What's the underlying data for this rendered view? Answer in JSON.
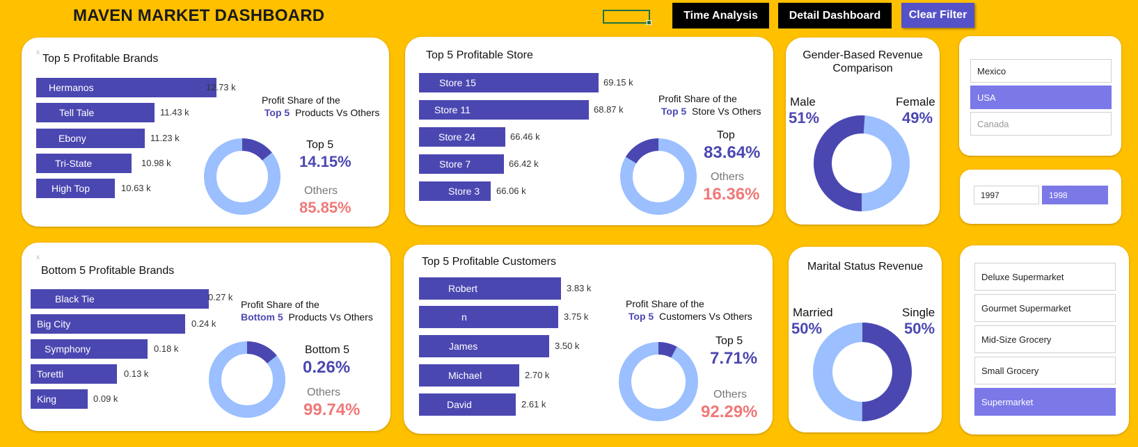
{
  "header": {
    "title": "MAVEN MARKET DASHBOARD",
    "buttons": {
      "time": "Time Analysis",
      "detail": "Detail Dashboard",
      "clear": "Clear Filter"
    }
  },
  "colors": {
    "background": "#FFC000",
    "bar": "#4B47B1",
    "donut_light": "#9BBFFF",
    "accent_red": "#F07878",
    "slicer_selected": "#7B78E8"
  },
  "top_brands": {
    "title": "Top 5 Profitable Brands",
    "close": "x",
    "bars": [
      {
        "label": "Hermanos",
        "value": "12.73 k"
      },
      {
        "label": "Tell Tale",
        "value": "11.43 k"
      },
      {
        "label": "Ebony",
        "value": "11.23 k"
      },
      {
        "label": "Tri-State",
        "value": "10.98 k"
      },
      {
        "label": "High Top",
        "value": "10.63 k"
      }
    ],
    "share_line1": "Profit Share of the",
    "share_bold": "Top 5",
    "share_rest": "Products Vs Others",
    "top_label": "Top 5",
    "top_pct": "14.15%",
    "others_label": "Others",
    "others_pct": "85.85%"
  },
  "top_stores": {
    "title": "Top 5 Profitable Store",
    "bars": [
      {
        "label": "Store 15",
        "value": "69.15 k"
      },
      {
        "label": "Store 11",
        "value": "68.87 k"
      },
      {
        "label": "Store 24",
        "value": "66.46 k"
      },
      {
        "label": "Store 7",
        "value": "66.42 k"
      },
      {
        "label": "Store 3",
        "value": "66.06 k"
      }
    ],
    "share_line1": "Profit Share of the",
    "share_bold": "Top 5",
    "share_rest": "Store Vs Others",
    "top_label": "Top",
    "top_pct": "83.64%",
    "others_label": "Others",
    "others_pct": "16.36%"
  },
  "gender": {
    "title_line1": "Gender-Based Revenue",
    "title_line2": "Comparison",
    "male_label": "Male",
    "male_pct": "51%",
    "female_label": "Female",
    "female_pct": "49%"
  },
  "country_slicer": {
    "items": [
      "Mexico",
      "USA",
      "Canada"
    ],
    "selected": "USA"
  },
  "year_slicer": {
    "items": [
      "1997",
      "1998"
    ],
    "selected": "1998"
  },
  "bottom_brands": {
    "title": "Bottom 5 Profitable Brands",
    "close": "x",
    "bars": [
      {
        "label": "Black Tie",
        "value": "0.27 k"
      },
      {
        "label": "Big City",
        "value": "0.24 k"
      },
      {
        "label": "Symphony",
        "value": "0.18 k"
      },
      {
        "label": "Toretti",
        "value": "0.13 k"
      },
      {
        "label": "King",
        "value": "0.09 k"
      }
    ],
    "share_line1": "Profit Share of the",
    "share_bold": "Bottom 5",
    "share_rest": "Products Vs Others",
    "top_label": "Bottom 5",
    "top_pct": "0.26%",
    "others_label": "Others",
    "others_pct": "99.74%"
  },
  "top_customers": {
    "title": "Top 5  Profitable Customers",
    "bars": [
      {
        "label": "Robert",
        "value": "3.83 k"
      },
      {
        "label": "n",
        "value": "3.75 k"
      },
      {
        "label": "James",
        "value": "3.50 k"
      },
      {
        "label": "Michael",
        "value": "2.70 k"
      },
      {
        "label": "David",
        "value": "2.61 k"
      }
    ],
    "share_line1": "Profit Share of the",
    "share_bold": "Top 5",
    "share_rest": "Customers Vs Others",
    "top_label": "Top 5",
    "top_pct": "7.71%",
    "others_label": "Others",
    "others_pct": "92.29%"
  },
  "marital": {
    "title": "Marital Status Revenue",
    "married_label": "Married",
    "married_pct": "50%",
    "single_label": "Single",
    "single_pct": "50%"
  },
  "store_type_slicer": {
    "items": [
      "Deluxe Supermarket",
      "Gourmet Supermarket",
      "Mid-Size Grocery",
      "Small Grocery",
      "Supermarket"
    ],
    "selected": "Supermarket"
  },
  "chart_data": [
    {
      "type": "bar",
      "title": "Top 5 Profitable Brands",
      "categories": [
        "Hermanos",
        "Tell Tale",
        "Ebony",
        "Tri-State",
        "High Top"
      ],
      "values": [
        12.73,
        11.43,
        11.23,
        10.98,
        10.63
      ]
    },
    {
      "type": "pie",
      "labels": [
        "Top 5",
        "Others"
      ],
      "values": [
        14.15,
        85.85
      ]
    },
    {
      "type": "bar",
      "title": "Top 5 Profitable Store",
      "categories": [
        "Store 15",
        "Store 11",
        "Store 24",
        "Store 7",
        "Store 3"
      ],
      "values": [
        69.15,
        68.87,
        66.46,
        66.42,
        66.06
      ]
    },
    {
      "type": "pie",
      "labels": [
        "Top",
        "Others"
      ],
      "values": [
        83.64,
        16.36
      ]
    },
    {
      "type": "pie",
      "title": "Gender-Based Revenue Comparison",
      "labels": [
        "Male",
        "Female"
      ],
      "values": [
        51,
        49
      ]
    },
    {
      "type": "bar",
      "title": "Bottom 5 Profitable Brands",
      "categories": [
        "Black Tie",
        "Big City",
        "Symphony",
        "Toretti",
        "King"
      ],
      "values": [
        0.27,
        0.24,
        0.18,
        0.13,
        0.09
      ]
    },
    {
      "type": "pie",
      "labels": [
        "Bottom 5",
        "Others"
      ],
      "values": [
        0.26,
        99.74
      ]
    },
    {
      "type": "bar",
      "title": "Top 5  Profitable Customers",
      "categories": [
        "Robert",
        "n",
        "James",
        "Michael",
        "David"
      ],
      "values": [
        3.83,
        3.75,
        3.5,
        2.7,
        2.61
      ]
    },
    {
      "type": "pie",
      "labels": [
        "Top 5",
        "Others"
      ],
      "values": [
        7.71,
        92.29
      ]
    },
    {
      "type": "pie",
      "title": "Marital Status Revenue",
      "labels": [
        "Married",
        "Single"
      ],
      "values": [
        50,
        50
      ]
    }
  ]
}
